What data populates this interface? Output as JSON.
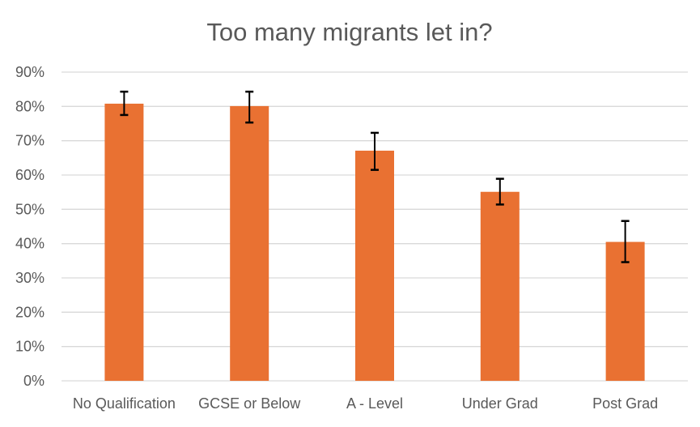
{
  "chart_data": {
    "type": "bar",
    "title": "Too many migrants let in?",
    "xlabel": "",
    "ylabel": "",
    "categories": [
      "No Qualification",
      "GCSE or Below",
      "A - Level",
      "Under Grad",
      "Post Grad"
    ],
    "values": [
      80.8,
      80.1,
      67.1,
      55.1,
      40.5
    ],
    "error_low": [
      77.5,
      75.3,
      61.5,
      51.4,
      34.6
    ],
    "error_high": [
      84.3,
      84.3,
      72.3,
      58.9,
      46.6
    ],
    "ylim": [
      0,
      90
    ],
    "yticks": [
      "0%",
      "10%",
      "20%",
      "30%",
      "40%",
      "50%",
      "60%",
      "70%",
      "80%",
      "90%"
    ],
    "grid": true,
    "legend": "none",
    "colors": {
      "bar": "#E97132",
      "error_bar": "#000000",
      "grid": "#D9D9D9",
      "text": "#595959"
    }
  }
}
